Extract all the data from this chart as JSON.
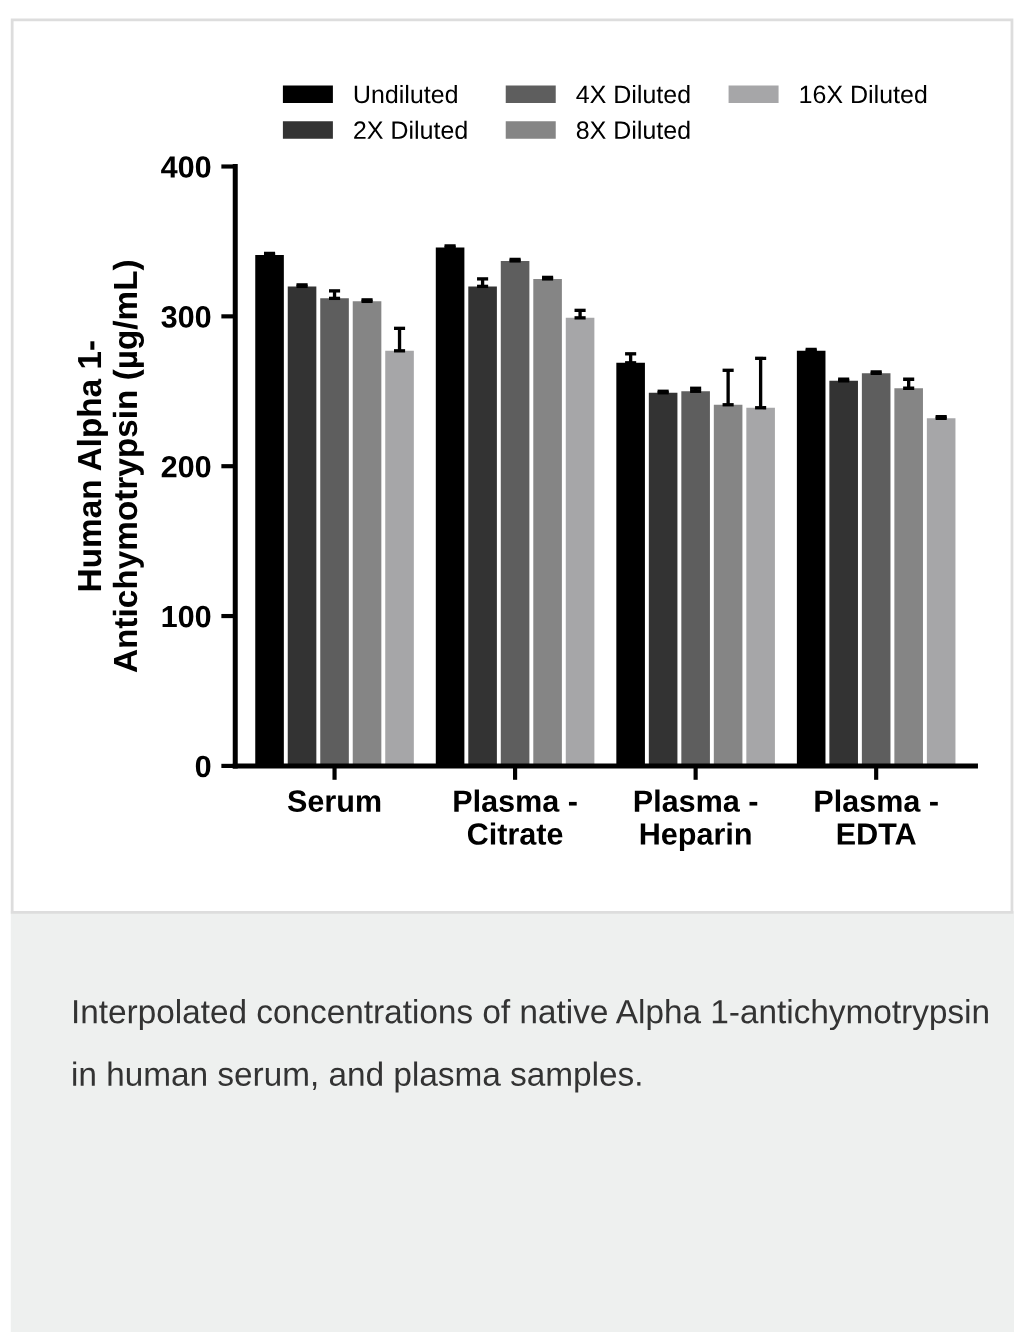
{
  "chart_data": {
    "type": "bar",
    "ylabel": "Human Alpha 1-\nAntichymotrypsin (µg/mL)",
    "categories": [
      "Serum",
      "Plasma -\nCitrate",
      "Plasma -\nHeparin",
      "Plasma -\nEDTA"
    ],
    "series": [
      {
        "name": "Undiluted",
        "color": "#000000",
        "values": [
          341,
          346,
          269,
          277
        ],
        "errors": [
          1,
          1,
          6,
          1
        ]
      },
      {
        "name": "2X Diluted",
        "color": "#333333",
        "values": [
          320,
          320,
          249,
          257
        ],
        "errors": [
          1,
          5,
          1,
          1
        ]
      },
      {
        "name": "4X Diluted",
        "color": "#5e5e5e",
        "values": [
          312,
          337,
          250,
          262
        ],
        "errors": [
          5,
          1,
          2,
          1
        ]
      },
      {
        "name": "8X Diluted",
        "color": "#858585",
        "values": [
          310,
          325,
          241,
          252
        ],
        "errors": [
          1,
          1,
          23,
          6
        ]
      },
      {
        "name": "16X Diluted",
        "color": "#a6a6a8",
        "values": [
          277,
          299,
          239,
          232
        ],
        "errors": [
          15,
          5,
          33,
          1
        ]
      }
    ],
    "ylim": [
      0,
      400
    ],
    "yticks": [
      0,
      100,
      200,
      300,
      400
    ],
    "grid": false,
    "legend": "top",
    "annotations": [
      "Interpolated concentrations of native Alpha 1-antichymotrypsin in human serum, and plasma samples."
    ]
  }
}
